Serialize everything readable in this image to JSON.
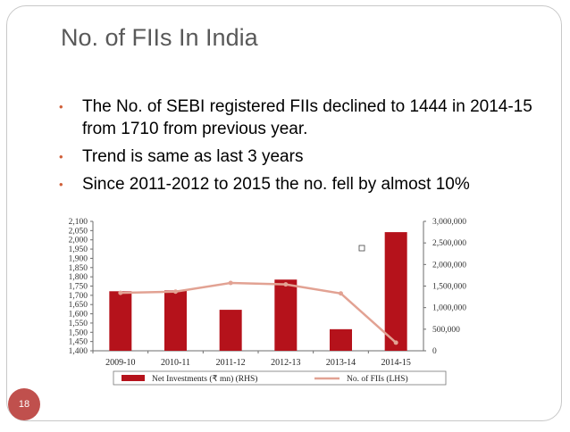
{
  "slide": {
    "title": "No. of FIIs In India",
    "number": "18",
    "bullets": [
      "The No. of SEBI registered FIIs declined to 1444 in 2014-15 from 1710 from previous year.",
      "Trend is same as last 3 years",
      "Since 2011-2012  to 2015 the no. fell by almost 10%"
    ]
  },
  "colors": {
    "bar": "#b5121b",
    "line": "#e2a293",
    "bullet": "#d0603a",
    "slide_number_bg": "#c0504d",
    "axis": "#6e6e6e"
  },
  "chart_data": {
    "type": "bar",
    "title": "",
    "categories": [
      "2009-10",
      "2010-11",
      "2011-12",
      "2012-13",
      "2013-14",
      "2014-15"
    ],
    "series": [
      {
        "name": "Net Investments (₹ mn) (RHS)",
        "type": "bar",
        "axis": "right",
        "values": [
          1380000,
          1400000,
          950000,
          1650000,
          500000,
          2750000
        ]
      },
      {
        "name": "No. of FIIs (LHS)",
        "type": "line",
        "axis": "left",
        "values": [
          1713,
          1720,
          1767,
          1759,
          1710,
          1444
        ]
      }
    ],
    "left_axis": {
      "min": 1400,
      "max": 2100,
      "step": 50,
      "tick_labels": [
        "1,400",
        "1,450",
        "1,500",
        "1,550",
        "1,600",
        "1,650",
        "1,700",
        "1,750",
        "1,800",
        "1,850",
        "1,900",
        "1,950",
        "2,000",
        "2,050",
        "2,100"
      ]
    },
    "right_axis": {
      "min": 0,
      "max": 3000000,
      "step": 500000,
      "tick_labels": [
        "0",
        "500,000",
        "1,000,000",
        "1,500,000",
        "2,000,000",
        "2,500,000",
        "3,000,000"
      ]
    },
    "legend": [
      "Net Investments (₹ mn) (RHS)",
      "No. of FIIs (LHS)"
    ],
    "legend_position": "bottom"
  }
}
